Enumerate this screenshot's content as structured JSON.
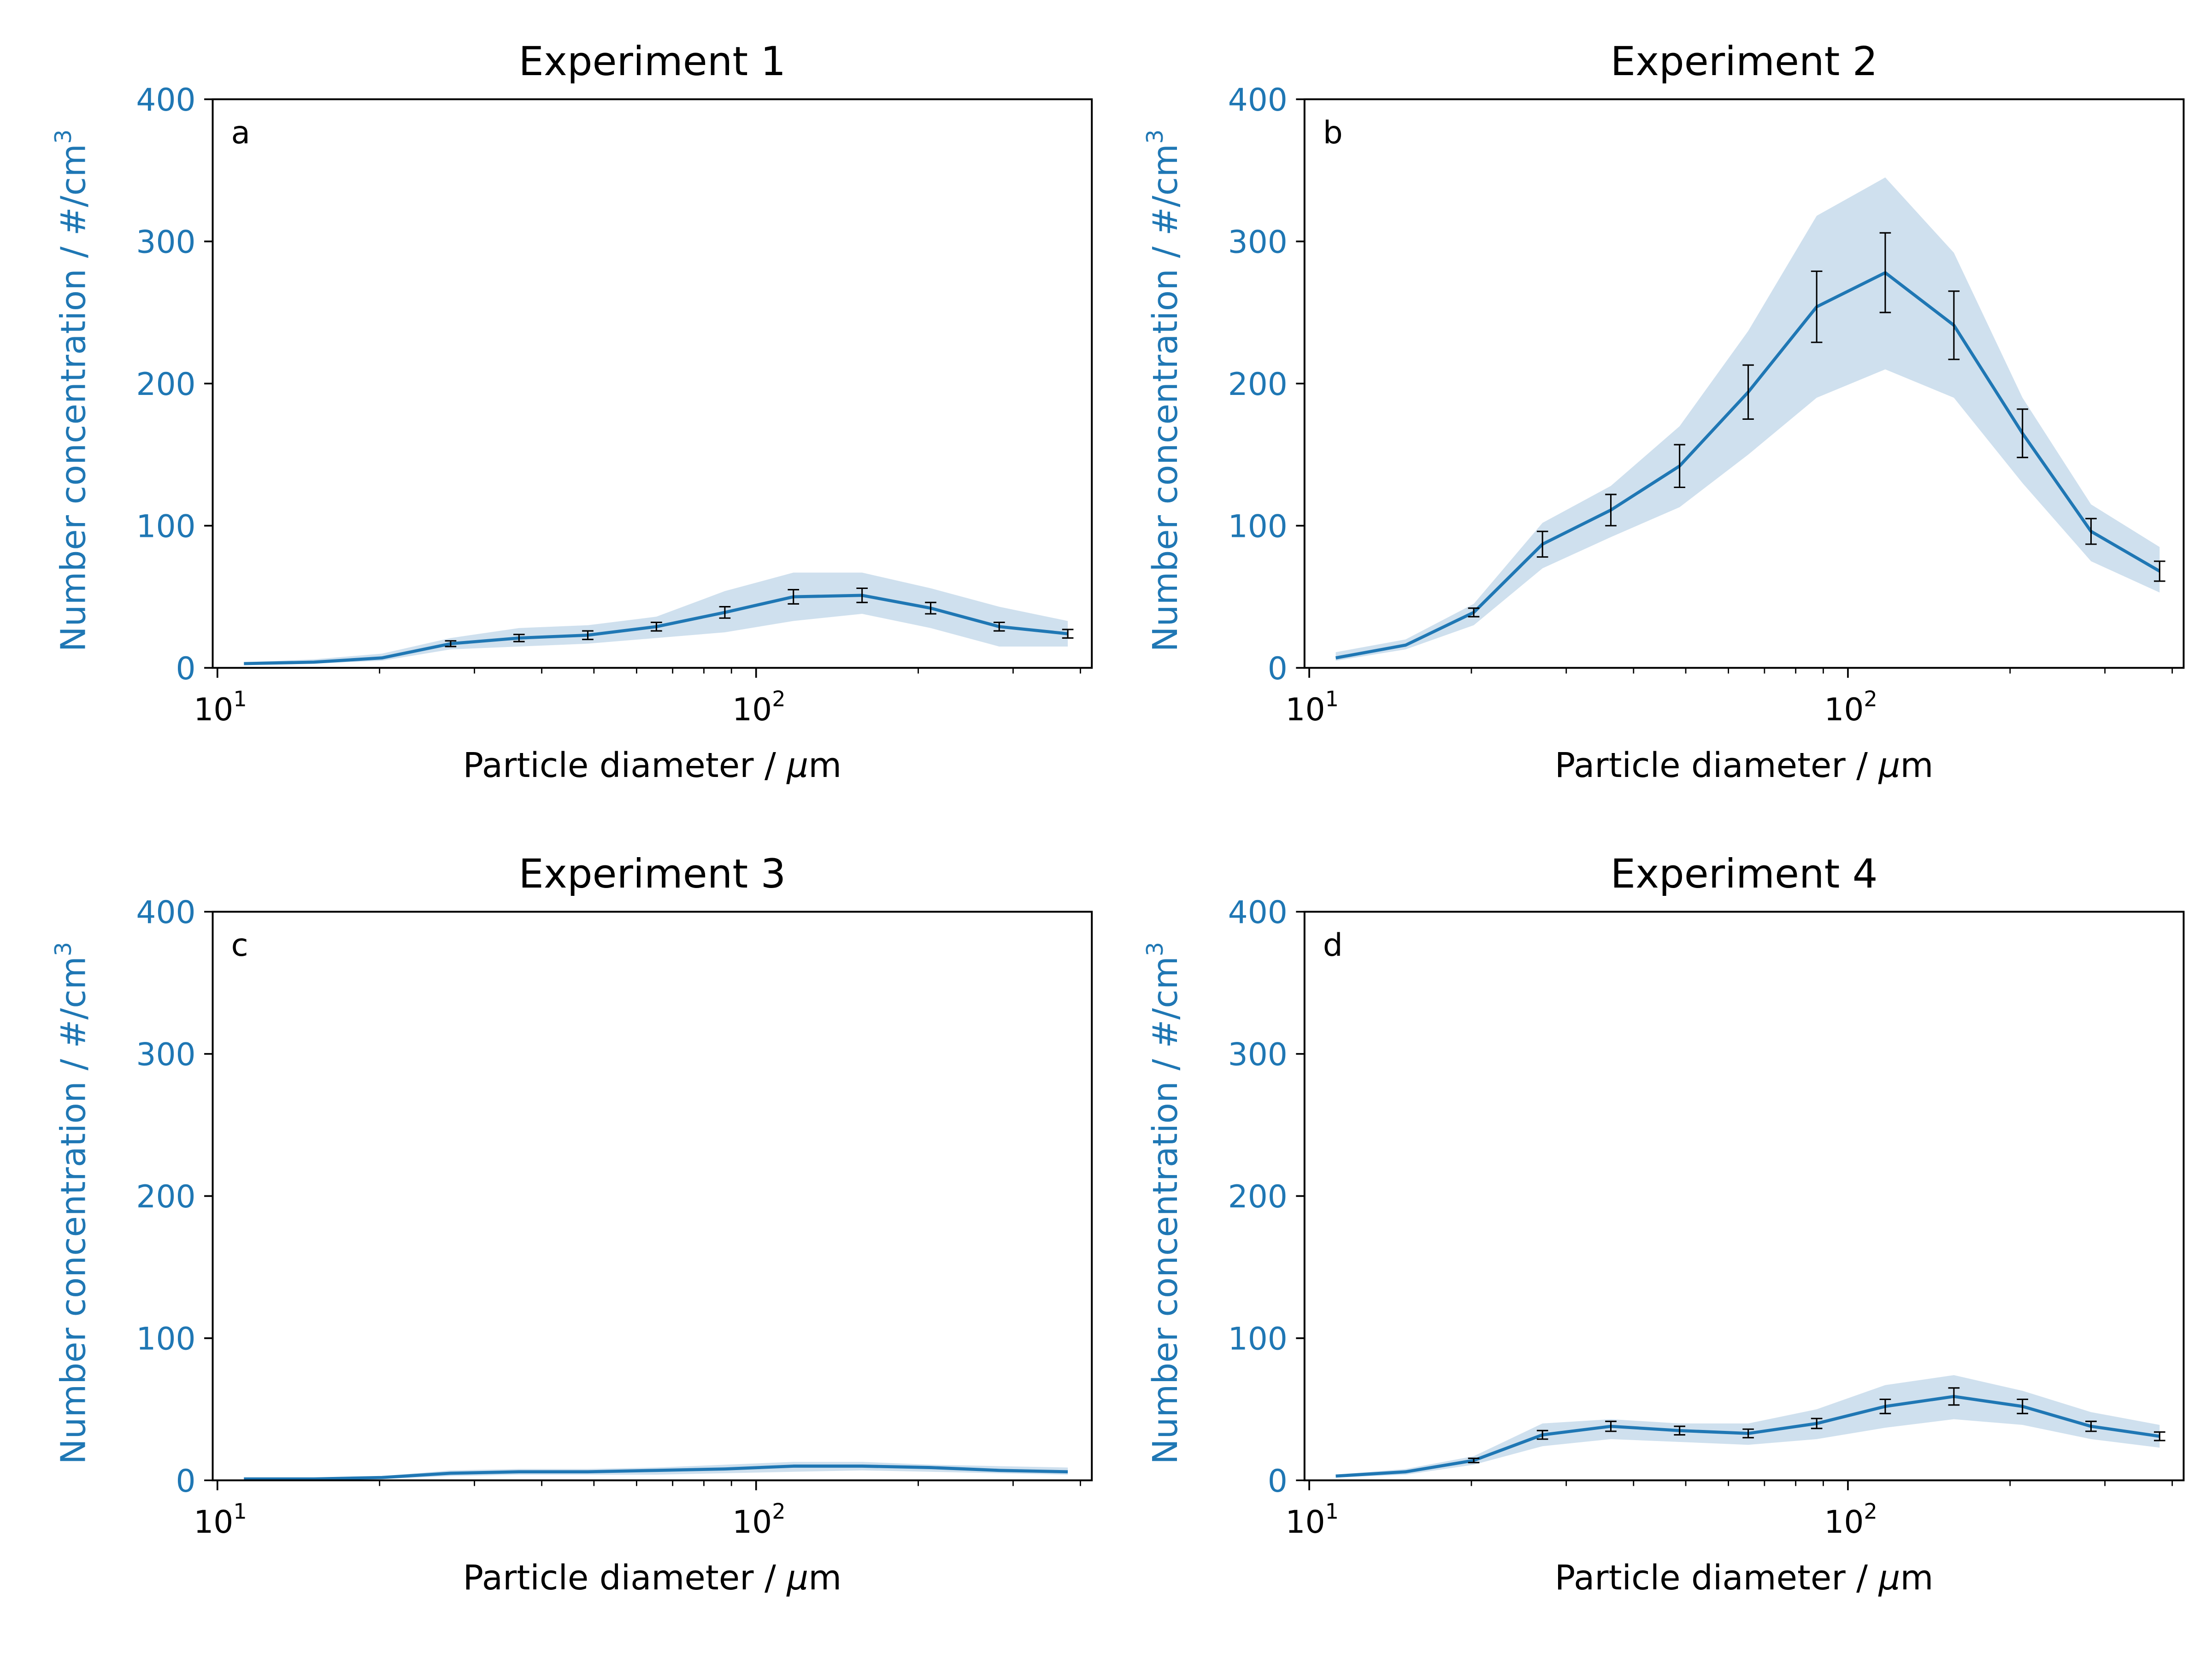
{
  "chart_data": [
    {
      "type": "line",
      "title": "Experiment 1",
      "panel_label": "a",
      "xlabel_prefix": "Particle diameter / ",
      "xlabel_unit_mu": "μ",
      "xlabel_unit_rest": "m",
      "ylabel": "Number concentration / #/cm",
      "ylabel_sup": "3",
      "x_scale": "log",
      "xlim": [
        9.8,
        420
      ],
      "ylim": [
        0,
        400
      ],
      "y_ticks": [
        "0",
        "100",
        "200",
        "300",
        "400"
      ],
      "x_major_ticks": [
        {
          "base": "10",
          "exp": "1",
          "value": 10
        },
        {
          "base": "10",
          "exp": "2",
          "value": 100
        }
      ],
      "series": [
        {
          "x": [
            11.2,
            15.1,
            20.2,
            27.1,
            36.3,
            48.7,
            65.3,
            87.5,
            117.3,
            157.3,
            210.9,
            282.7,
            379.0
          ],
          "y": [
            3,
            4,
            7,
            17,
            21,
            23,
            29,
            39,
            50,
            51,
            42,
            29,
            24
          ],
          "err": [
            0,
            0,
            0,
            2,
            2.5,
            3,
            3,
            4,
            5,
            5,
            4,
            3,
            3
          ],
          "band_lower": [
            2,
            3,
            5,
            13,
            15,
            17,
            21,
            25,
            33,
            38,
            28,
            15,
            15
          ],
          "band_upper": [
            4,
            6,
            10,
            21,
            28,
            30,
            36,
            54,
            67,
            67,
            56,
            43,
            33
          ]
        }
      ],
      "grid": false,
      "line_color": "#1f77b4",
      "band_color": "#cfe0ee"
    },
    {
      "type": "line",
      "title": "Experiment 2",
      "panel_label": "b",
      "xlabel_prefix": "Particle diameter / ",
      "xlabel_unit_mu": "μ",
      "xlabel_unit_rest": "m",
      "ylabel": "Number concentration / #/cm",
      "ylabel_sup": "3",
      "x_scale": "log",
      "xlim": [
        9.8,
        420
      ],
      "ylim": [
        0,
        400
      ],
      "y_ticks": [
        "0",
        "100",
        "200",
        "300",
        "400"
      ],
      "x_major_ticks": [
        {
          "base": "10",
          "exp": "1",
          "value": 10
        },
        {
          "base": "10",
          "exp": "2",
          "value": 100
        }
      ],
      "series": [
        {
          "x": [
            11.2,
            15.1,
            20.2,
            27.1,
            36.3,
            48.7,
            65.3,
            87.5,
            117.3,
            157.3,
            210.9,
            282.7,
            379.0
          ],
          "y": [
            7,
            16,
            39,
            87,
            111,
            142,
            194,
            254,
            278,
            241,
            165,
            96,
            68
          ],
          "err": [
            0,
            0,
            3,
            9,
            11,
            15,
            19,
            25,
            28,
            24,
            17,
            9,
            7
          ],
          "band_lower": [
            5,
            13,
            30,
            70,
            92,
            113,
            150,
            190,
            210,
            190,
            130,
            75,
            53
          ],
          "band_upper": [
            11,
            20,
            45,
            102,
            128,
            170,
            237,
            318,
            345,
            292,
            190,
            115,
            85
          ]
        }
      ],
      "grid": false,
      "line_color": "#1f77b4",
      "band_color": "#cfe0ee"
    },
    {
      "type": "line",
      "title": "Experiment 3",
      "panel_label": "c",
      "xlabel_prefix": "Particle diameter / ",
      "xlabel_unit_mu": "μ",
      "xlabel_unit_rest": "m",
      "ylabel": "Number concentration / #/cm",
      "ylabel_sup": "3",
      "x_scale": "log",
      "xlim": [
        9.8,
        420
      ],
      "ylim": [
        0,
        400
      ],
      "y_ticks": [
        "0",
        "100",
        "200",
        "300",
        "400"
      ],
      "x_major_ticks": [
        {
          "base": "10",
          "exp": "1",
          "value": 10
        },
        {
          "base": "10",
          "exp": "2",
          "value": 100
        }
      ],
      "series": [
        {
          "x": [
            11.2,
            15.1,
            20.2,
            27.1,
            36.3,
            48.7,
            65.3,
            87.5,
            117.3,
            157.3,
            210.9,
            282.7,
            379.0
          ],
          "y": [
            1,
            1,
            2,
            5,
            6,
            6,
            7,
            8,
            10,
            10,
            9,
            7,
            6
          ],
          "err": [
            0,
            0,
            0,
            0,
            0,
            0,
            0,
            0,
            0,
            0,
            0,
            0,
            0
          ],
          "band_lower": [
            0,
            0,
            1,
            3,
            4,
            4,
            4,
            5,
            6,
            7,
            6,
            5,
            4
          ],
          "band_upper": [
            2,
            2,
            3,
            7,
            8,
            8,
            9,
            11,
            13,
            13,
            11,
            10,
            9
          ]
        }
      ],
      "grid": false,
      "line_color": "#1f77b4",
      "band_color": "#cfe0ee"
    },
    {
      "type": "line",
      "title": "Experiment 4",
      "panel_label": "d",
      "xlabel_prefix": "Particle diameter / ",
      "xlabel_unit_mu": "μ",
      "xlabel_unit_rest": "m",
      "ylabel": "Number concentration / #/cm",
      "ylabel_sup": "3",
      "x_scale": "log",
      "xlim": [
        9.8,
        420
      ],
      "ylim": [
        0,
        400
      ],
      "y_ticks": [
        "0",
        "100",
        "200",
        "300",
        "400"
      ],
      "x_major_ticks": [
        {
          "base": "10",
          "exp": "1",
          "value": 10
        },
        {
          "base": "10",
          "exp": "2",
          "value": 100
        }
      ],
      "series": [
        {
          "x": [
            11.2,
            15.1,
            20.2,
            27.1,
            36.3,
            48.7,
            65.3,
            87.5,
            117.3,
            157.3,
            210.9,
            282.7,
            379.0
          ],
          "y": [
            3,
            6,
            14,
            32,
            38,
            35,
            33,
            40,
            52,
            59,
            52,
            38,
            31
          ],
          "err": [
            0,
            0,
            1.5,
            3,
            3.5,
            3,
            3,
            3.5,
            5,
            6,
            5,
            3.5,
            3
          ],
          "band_lower": [
            2,
            4,
            11,
            24,
            29,
            27,
            25,
            29,
            37,
            43,
            39,
            29,
            23
          ],
          "band_upper": [
            4,
            8,
            17,
            40,
            43,
            40,
            40,
            50,
            67,
            74,
            63,
            48,
            39
          ]
        }
      ],
      "grid": false,
      "line_color": "#1f77b4",
      "band_color": "#cfe0ee"
    }
  ],
  "colors": {
    "axis_accent": "#1f77b4",
    "series": "#1f77b4",
    "band": "#cfe0ee",
    "text": "#000000"
  }
}
